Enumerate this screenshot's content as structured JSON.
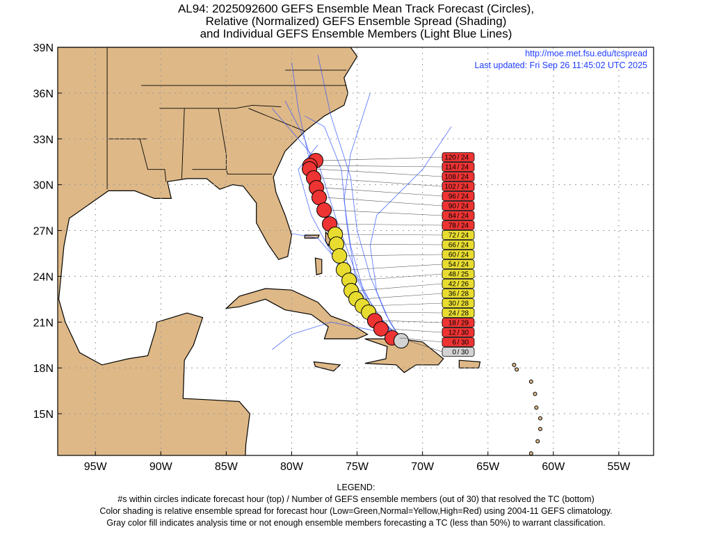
{
  "title": {
    "line1": "AL94: 2025092600 GEFS Ensemble Mean Track Forecast (Circles),",
    "line2": "Relative (Normalized) GEFS Ensemble Spread (Shading)",
    "line3": "and Individual GEFS Ensemble Members (Light Blue Lines)"
  },
  "info": {
    "url": "http://moe.met.fsu.edu/tcspread",
    "updated": "Last updated: Fri Sep 26 11:45:02 UTC 2025"
  },
  "legend": {
    "heading": "LEGEND:",
    "line1": "#s within circles indicate forecast hour (top) / Number of GEFS ensemble members (out of 30) that resolved the TC (bottom)",
    "line2": "Color shading is relative ensemble spread for forecast hour (Low=Green,Normal=Yellow,High=Red) using 2004-11 GEFS climatology.",
    "line3": "Gray color fill indicates analysis time or not enough ensemble members forecasting a TC (less than 50%) to warrant classification."
  },
  "colors": {
    "land": "#deb887",
    "ocean": "#ffffff",
    "member": "#3355ff",
    "high": "#ee3333",
    "normal": "#e8dc30",
    "gray": "#d3d3d3"
  },
  "chart_data": {
    "type": "scatter",
    "xlim": [
      -97.88,
      -52.34
    ],
    "ylim": [
      12.27,
      39
    ],
    "grid": true,
    "x_ticks": [
      {
        "v": -95,
        "label": "95W"
      },
      {
        "v": -90,
        "label": "90W"
      },
      {
        "v": -85,
        "label": "85W"
      },
      {
        "v": -80,
        "label": "80W"
      },
      {
        "v": -75,
        "label": "75W"
      },
      {
        "v": -70,
        "label": "70W"
      },
      {
        "v": -65,
        "label": "65W"
      },
      {
        "v": -60,
        "label": "60W"
      },
      {
        "v": -55,
        "label": "55W"
      }
    ],
    "y_ticks": [
      {
        "v": 15,
        "label": "15N"
      },
      {
        "v": 18,
        "label": "18N"
      },
      {
        "v": 21,
        "label": "21N"
      },
      {
        "v": 24,
        "label": "24N"
      },
      {
        "v": 27,
        "label": "27N"
      },
      {
        "v": 30,
        "label": "30N"
      },
      {
        "v": 33,
        "label": "33N"
      },
      {
        "v": 36,
        "label": "36N"
      },
      {
        "v": 39,
        "label": "39N"
      }
    ],
    "mean_track": [
      {
        "hour": "0",
        "members": "30",
        "lon": -71.63,
        "lat": 19.78,
        "spread": "gray"
      },
      {
        "hour": "6",
        "members": "30",
        "lon": -72.32,
        "lat": 19.97,
        "spread": "high"
      },
      {
        "hour": "12",
        "members": "30",
        "lon": -73.17,
        "lat": 20.56,
        "spread": "high"
      },
      {
        "hour": "18",
        "members": "29",
        "lon": -73.65,
        "lat": 21.1,
        "spread": "high"
      },
      {
        "hour": "24",
        "members": "28",
        "lon": -74.12,
        "lat": 21.65,
        "spread": "normal"
      },
      {
        "hour": "30",
        "members": "28",
        "lon": -74.6,
        "lat": 22.06,
        "spread": "normal"
      },
      {
        "hour": "36",
        "members": "28",
        "lon": -75.08,
        "lat": 22.52,
        "spread": "normal"
      },
      {
        "hour": "42",
        "members": "26",
        "lon": -75.45,
        "lat": 23.06,
        "spread": "normal"
      },
      {
        "hour": "48",
        "members": "25",
        "lon": -75.61,
        "lat": 23.74,
        "spread": "normal"
      },
      {
        "hour": "54",
        "members": "24",
        "lon": -76.04,
        "lat": 24.43,
        "spread": "normal"
      },
      {
        "hour": "60",
        "members": "24",
        "lon": -76.35,
        "lat": 25.34,
        "spread": "normal"
      },
      {
        "hour": "66",
        "members": "24",
        "lon": -76.57,
        "lat": 26.11,
        "spread": "normal"
      },
      {
        "hour": "72",
        "members": "24",
        "lon": -76.67,
        "lat": 26.75,
        "spread": "normal"
      },
      {
        "hour": "78",
        "members": "24",
        "lon": -77.1,
        "lat": 27.43,
        "spread": "high"
      },
      {
        "hour": "84",
        "members": "24",
        "lon": -77.52,
        "lat": 28.34,
        "spread": "high"
      },
      {
        "hour": "90",
        "members": "24",
        "lon": -77.9,
        "lat": 29.16,
        "spread": "high"
      },
      {
        "hour": "96",
        "members": "24",
        "lon": -78.11,
        "lat": 29.8,
        "spread": "high"
      },
      {
        "hour": "102",
        "members": "24",
        "lon": -78.32,
        "lat": 30.44,
        "spread": "high"
      },
      {
        "hour": "108",
        "members": "24",
        "lon": -78.64,
        "lat": 31.03,
        "spread": "high"
      },
      {
        "hour": "114",
        "members": "24",
        "lon": -78.6,
        "lat": 31.26,
        "spread": "high"
      },
      {
        "hour": "120",
        "members": "24",
        "lon": -78.16,
        "lat": 31.58,
        "spread": "high"
      }
    ],
    "member_tracks": [
      [
        [
          -71.6,
          19.8
        ],
        [
          -73.5,
          21.2
        ],
        [
          -75.5,
          23.5
        ],
        [
          -77,
          27
        ],
        [
          -78.5,
          31
        ],
        [
          -79.5,
          35
        ],
        [
          -80,
          38
        ]
      ],
      [
        [
          -71.6,
          19.8
        ],
        [
          -73,
          21
        ],
        [
          -74.5,
          23
        ],
        [
          -75.5,
          26
        ],
        [
          -76,
          29
        ],
        [
          -75.5,
          32
        ],
        [
          -74,
          36
        ]
      ],
      [
        [
          -71.6,
          19.8
        ],
        [
          -73.2,
          20.8
        ],
        [
          -74.8,
          22.8
        ],
        [
          -76,
          25.5
        ],
        [
          -77.5,
          29
        ],
        [
          -79,
          33
        ],
        [
          -80.5,
          35.5
        ]
      ],
      [
        [
          -71.6,
          19.8
        ],
        [
          -72.5,
          21
        ],
        [
          -73.5,
          23
        ],
        [
          -74,
          26
        ],
        [
          -73.5,
          28
        ],
        [
          -70,
          31
        ],
        [
          -67.8,
          33.8
        ]
      ],
      [
        [
          -71.6,
          19.8
        ],
        [
          -74,
          20.5
        ],
        [
          -77,
          21
        ],
        [
          -80,
          20.2
        ],
        [
          -81.5,
          19.2
        ]
      ],
      [
        [
          -71.6,
          19.8
        ],
        [
          -73.5,
          21.5
        ],
        [
          -75,
          24
        ],
        [
          -76.5,
          27.5
        ],
        [
          -78,
          31.5
        ],
        [
          -80.5,
          34
        ],
        [
          -81.5,
          35
        ]
      ],
      [
        [
          -71.6,
          19.8
        ],
        [
          -72.8,
          21.5
        ],
        [
          -74,
          24
        ],
        [
          -75,
          27
        ],
        [
          -75.5,
          30.5
        ],
        [
          -77,
          34.5
        ],
        [
          -78,
          38.5
        ]
      ],
      [
        [
          -71.6,
          19.8
        ],
        [
          -73.8,
          21.8
        ],
        [
          -76,
          24.5
        ],
        [
          -78,
          26.5
        ],
        [
          -80,
          26.8
        ]
      ],
      [
        [
          -71.6,
          19.8
        ],
        [
          -73,
          20.5
        ],
        [
          -74.5,
          22
        ],
        [
          -76.5,
          24.8
        ],
        [
          -78.5,
          28
        ],
        [
          -79.5,
          31
        ],
        [
          -78,
          32.6
        ]
      ],
      [
        [
          -71.6,
          19.8
        ],
        [
          -73.6,
          21.3
        ],
        [
          -75.2,
          24.2
        ],
        [
          -75.8,
          27.5
        ],
        [
          -76.2,
          31
        ],
        [
          -77.5,
          33.8
        ],
        [
          -79,
          34.5
        ]
      ]
    ]
  }
}
